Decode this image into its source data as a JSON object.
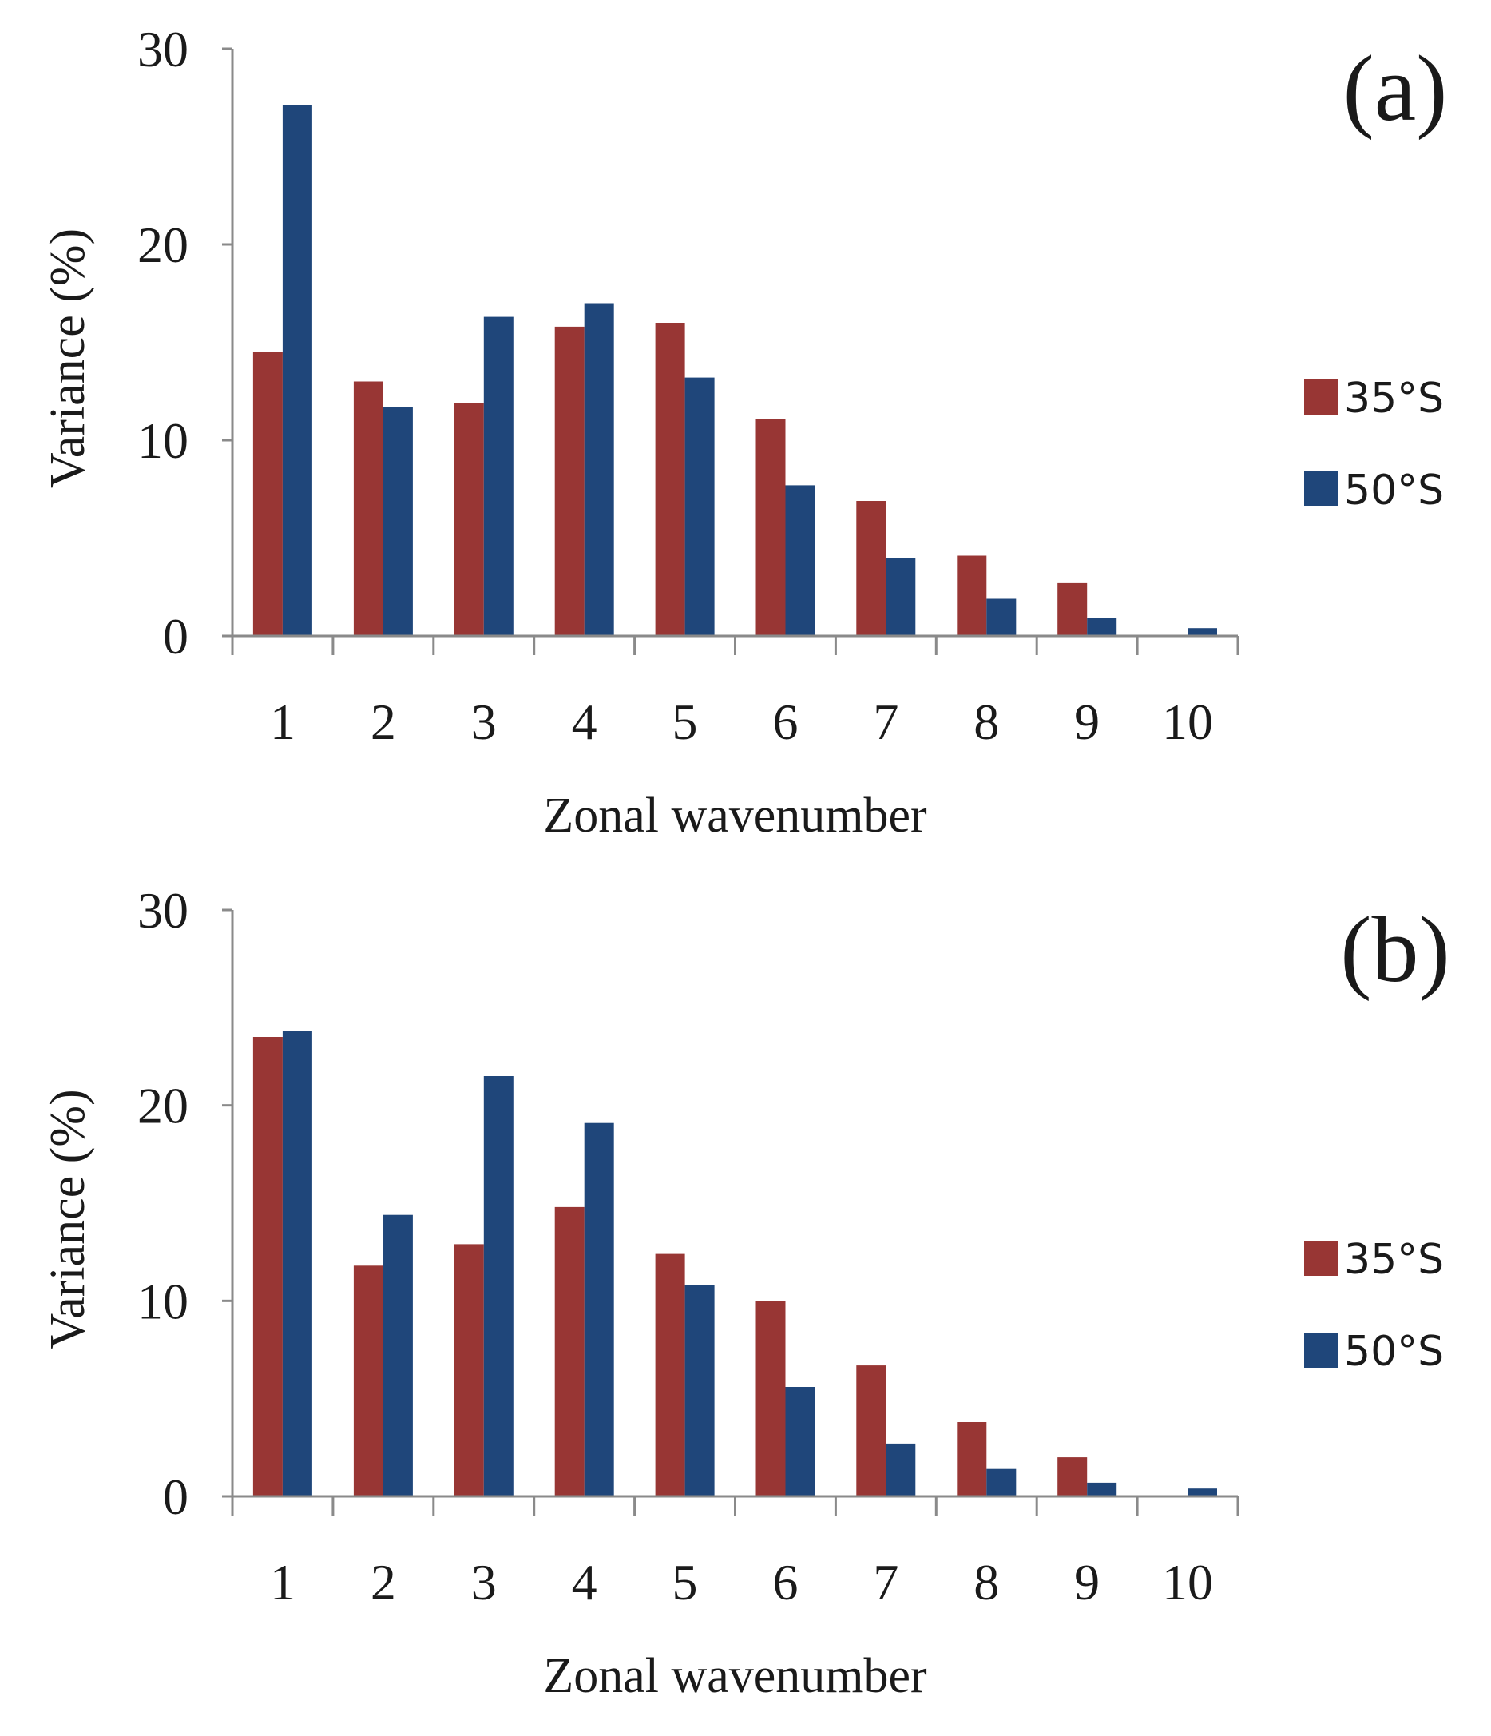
{
  "chart_data": [
    {
      "type": "bar",
      "panel_label": "(a)",
      "categories": [
        "1",
        "2",
        "3",
        "4",
        "5",
        "6",
        "7",
        "8",
        "9",
        "10"
      ],
      "series": [
        {
          "name": "35°S",
          "color": "#983634",
          "values": [
            14.5,
            13.0,
            11.9,
            15.8,
            16.0,
            11.1,
            6.9,
            4.1,
            2.7,
            0.0
          ]
        },
        {
          "name": "50°S",
          "color": "#1f467a",
          "values": [
            27.1,
            11.7,
            16.3,
            17.0,
            13.2,
            7.7,
            4.0,
            1.9,
            0.9,
            0.4
          ]
        }
      ],
      "xlabel": "Zonal wavenumber",
      "ylabel": "Variance (%)",
      "ylim": [
        0,
        30
      ],
      "yticks": [
        "0",
        "10",
        "20",
        "30"
      ],
      "legend_position": "right"
    },
    {
      "type": "bar",
      "panel_label": "(b)",
      "categories": [
        "1",
        "2",
        "3",
        "4",
        "5",
        "6",
        "7",
        "8",
        "9",
        "10"
      ],
      "series": [
        {
          "name": "35°S",
          "color": "#983634",
          "values": [
            23.5,
            11.8,
            12.9,
            14.8,
            12.4,
            10.0,
            6.7,
            3.8,
            2.0,
            0.0
          ]
        },
        {
          "name": "50°S",
          "color": "#1f467a",
          "values": [
            23.8,
            14.4,
            21.5,
            19.1,
            10.8,
            5.6,
            2.7,
            1.4,
            0.7,
            0.4
          ]
        }
      ],
      "xlabel": "Zonal wavenumber",
      "ylabel": "Variance (%)",
      "ylim": [
        0,
        30
      ],
      "yticks": [
        "0",
        "10",
        "20",
        "30"
      ],
      "legend_position": "right"
    }
  ]
}
